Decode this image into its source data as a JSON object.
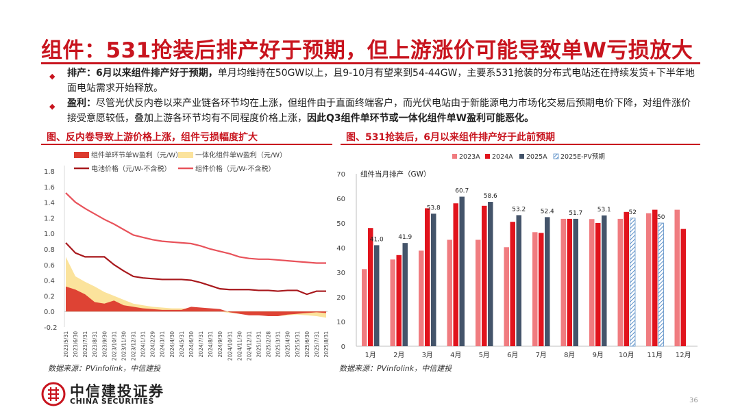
{
  "title": "组件：531抢装后排产好于预期，但上游涨价可能导致单W亏损放大",
  "bullets": [
    {
      "lead": "排产：",
      "bold": "6月以来组件排产好于预期，",
      "text": "单月均维持在50GW以上，且9-10月有望来到54-44GW，主要系531抢装的分布式电站还在持续发货+下半年地面电站需求开始释放。",
      "tail": ""
    },
    {
      "lead": "盈利：",
      "bold": "",
      "text": "尽管光伏反内卷以来产业链各环节均在上涨，但组件由于直面终端客户，而光伏电站由于新能源电力市场化交易后预期电价下降，对组件涨价接受意愿较低，叠加上游各环节均有不同程度价格上涨，",
      "tail": "因此Q3组件单环节或一体化组件单W盈利可能恶化。"
    }
  ],
  "colors": {
    "accent": "#c8141e",
    "c2023": "#f07c80",
    "c2024": "#e1141d",
    "c2025": "#44546a",
    "cForecast": "#9dc3e6",
    "cModule": "#e8525a",
    "cCell": "#a8181c",
    "cProfit": "#dc3a2e",
    "cIntProfit": "#fbe39c"
  },
  "left": {
    "caption": "图、反内卷导致上游价格上涨，组件亏损幅度扩大",
    "source": "数据来源：PVinfolink，中信建投",
    "chart_data": {
      "type": "line",
      "series": [
        {
          "name": "组件单环节单W盈利（元/W）",
          "style": "area"
        },
        {
          "name": "一体化组件单W盈利（元/W）",
          "style": "area"
        },
        {
          "name": "电池价格（元/W-不含税）",
          "style": "line"
        },
        {
          "name": "组件价格（元/W-不含税）",
          "style": "line"
        }
      ],
      "ylim": [
        -0.2,
        1.8
      ],
      "yticks": [
        "-0.2",
        "0.0",
        "0.2",
        "0.4",
        "0.6",
        "0.8",
        "1.0",
        "1.2",
        "1.4",
        "1.6",
        "1.8"
      ],
      "xticks": [
        "2023/5/31",
        "2023/6/30",
        "2023/7/31",
        "2023/8/31",
        "2023/9/30",
        "2023/10/31",
        "2023/11/30",
        "2023/12/31",
        "2024/1/31",
        "2024/2/29",
        "2024/3/31",
        "2024/4/30",
        "2024/5/31",
        "2024/6/30",
        "2024/7/31",
        "2024/8/31",
        "2024/9/30",
        "2024/10/31",
        "2024/11/30",
        "2024/12/31",
        "2025/1/31",
        "2025/2/28",
        "2025/3/31",
        "2025/4/30",
        "2025/5/31",
        "2025/6/30",
        "2025/7/31",
        "2025/8/31"
      ],
      "module_price": [
        1.52,
        1.4,
        1.32,
        1.25,
        1.18,
        1.12,
        1.05,
        0.98,
        0.95,
        0.92,
        0.9,
        0.89,
        0.88,
        0.87,
        0.84,
        0.8,
        0.77,
        0.74,
        0.7,
        0.68,
        0.67,
        0.67,
        0.66,
        0.65,
        0.64,
        0.63,
        0.62,
        0.62
      ],
      "cell_price": [
        0.88,
        0.75,
        0.7,
        0.7,
        0.7,
        0.6,
        0.52,
        0.45,
        0.43,
        0.42,
        0.41,
        0.41,
        0.41,
        0.4,
        0.37,
        0.33,
        0.29,
        0.28,
        0.28,
        0.28,
        0.27,
        0.27,
        0.26,
        0.27,
        0.27,
        0.22,
        0.26,
        0.26
      ],
      "unit_profit": [
        0.32,
        0.28,
        0.22,
        0.12,
        0.1,
        0.14,
        0.08,
        0.06,
        0.04,
        0.03,
        0.02,
        0.02,
        0.02,
        0.06,
        0.05,
        0.04,
        0.03,
        -0.01,
        -0.03,
        -0.05,
        -0.05,
        -0.06,
        -0.06,
        -0.04,
        -0.03,
        -0.02,
        -0.01,
        -0.02
      ],
      "integrated_profit": [
        0.7,
        0.45,
        0.38,
        0.32,
        0.25,
        0.2,
        0.15,
        0.1,
        0.08,
        0.06,
        0.05,
        0.04,
        0.04,
        0.03,
        0.02,
        0.01,
        0.0,
        -0.02,
        -0.03,
        -0.04,
        -0.05,
        -0.05,
        -0.06,
        -0.05,
        -0.04,
        -0.05,
        -0.06,
        -0.08
      ]
    }
  },
  "right": {
    "caption": "图、531抢装后，6月以来组件排产好于此前预期",
    "source": "数据来源：PVinfolink，中信建投",
    "chart_data": {
      "type": "bar",
      "ylabel": "组件当月排产（GW）",
      "ylim": [
        0,
        70
      ],
      "yticks": [
        "0",
        "10",
        "20",
        "30",
        "40",
        "50",
        "60",
        "70"
      ],
      "categories": [
        "1月",
        "2月",
        "3月",
        "4月",
        "5月",
        "6月",
        "7月",
        "8月",
        "9月",
        "10月",
        "11月",
        "12月"
      ],
      "series": [
        {
          "name": "2023A",
          "values": [
            31.3,
            35.2,
            38.8,
            43.2,
            43.2,
            40.2,
            46.3,
            51.7,
            51.6,
            51.7,
            54.0,
            55.4
          ]
        },
        {
          "name": "2024A",
          "values": [
            48.0,
            37.0,
            56.0,
            58.0,
            57.0,
            50.5,
            46.0,
            51.7,
            50.0,
            54.5,
            55.4,
            47.6
          ]
        },
        {
          "name": "2025A",
          "values": [
            41.0,
            41.9,
            53.8,
            60.7,
            58.6,
            53.2,
            52.4,
            51.7,
            53.1,
            null,
            null,
            null
          ]
        },
        {
          "name": "2025E-PV预期",
          "values": [
            null,
            null,
            null,
            null,
            null,
            null,
            null,
            null,
            null,
            52,
            50,
            null
          ]
        }
      ],
      "labels": [
        {
          "series": 2,
          "index": 0,
          "text": "41.0"
        },
        {
          "series": 2,
          "index": 1,
          "text": "41.9"
        },
        {
          "series": 2,
          "index": 2,
          "text": "53.8"
        },
        {
          "series": 2,
          "index": 3,
          "text": "60.7"
        },
        {
          "series": 2,
          "index": 4,
          "text": "58.6"
        },
        {
          "series": 2,
          "index": 5,
          "text": "53.2"
        },
        {
          "series": 2,
          "index": 6,
          "text": "52.4"
        },
        {
          "series": 2,
          "index": 7,
          "text": "51.7"
        },
        {
          "series": 2,
          "index": 8,
          "text": "53.1"
        },
        {
          "series": 3,
          "index": 9,
          "text": "52"
        },
        {
          "series": 3,
          "index": 10,
          "text": "50"
        }
      ]
    }
  },
  "footer": {
    "logo_cn": "中信建投证券",
    "logo_en": "CHINA SECURITIES",
    "page": "36"
  }
}
